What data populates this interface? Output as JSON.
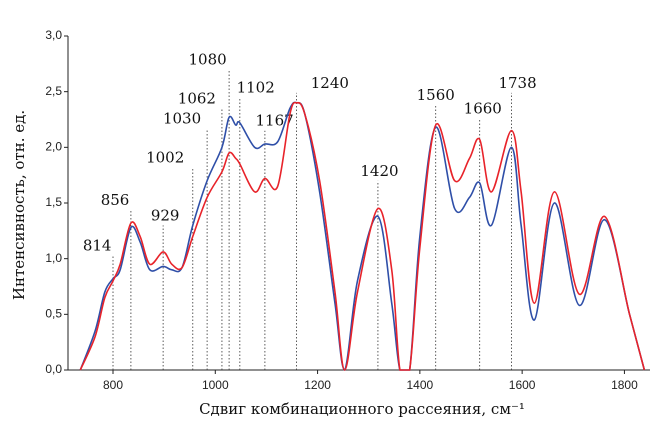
{
  "chart_data": {
    "type": "line",
    "x_label": "Сдвиг комбинационного рассеяния, см⁻¹",
    "y_label": "Интенсивность, отн. ед.",
    "x": [
      736,
      765,
      784,
      800,
      814,
      835,
      853,
      872,
      898,
      915,
      935,
      956,
      984,
      1013,
      1027,
      1040,
      1048,
      1077,
      1097,
      1122,
      1146,
      1159,
      1175,
      1204,
      1234,
      1253,
      1278,
      1318,
      1345,
      1361,
      1380,
      1400,
      1431,
      1468,
      1497,
      1517,
      1540,
      1579,
      1598,
      1624,
      1663,
      1712,
      1761,
      1810,
      1839
    ],
    "series": [
      {
        "color": "#2f4fa8",
        "values": [
          0,
          0.35,
          0.7,
          0.82,
          0.9,
          1.28,
          1.15,
          0.9,
          0.93,
          0.9,
          0.92,
          1.3,
          1.7,
          2.0,
          2.27,
          2.2,
          2.22,
          2.0,
          2.03,
          2.05,
          2.35,
          2.4,
          2.3,
          1.6,
          0.6,
          0,
          0.8,
          1.38,
          0.6,
          0,
          0,
          1.2,
          2.18,
          1.45,
          1.55,
          1.68,
          1.3,
          2.0,
          1.3,
          0.45,
          1.5,
          0.58,
          1.35,
          0.5,
          0
        ]
      },
      {
        "color": "#e8232a",
        "values": [
          0,
          0.3,
          0.65,
          0.8,
          0.95,
          1.32,
          1.2,
          0.95,
          1.06,
          0.95,
          0.92,
          1.2,
          1.55,
          1.78,
          1.95,
          1.9,
          1.85,
          1.6,
          1.72,
          1.65,
          2.3,
          2.4,
          2.3,
          1.7,
          0.7,
          0,
          0.7,
          1.45,
          0.9,
          0,
          0,
          1.1,
          2.2,
          1.7,
          1.9,
          2.07,
          1.6,
          2.15,
          1.6,
          0.6,
          1.6,
          0.68,
          1.38,
          0.5,
          0
        ]
      }
    ],
    "xlim": [
      712,
      1850
    ],
    "xticks": [
      800,
      1000,
      1200,
      1400,
      1600,
      1800
    ],
    "ylim": [
      0,
      3
    ],
    "yticks": [
      {
        "value": 0,
        "label": "0,0"
      },
      {
        "value": 0.5,
        "label": "0,5"
      },
      {
        "value": 1,
        "label": "1,0"
      },
      {
        "value": 1.5,
        "label": "1,5"
      },
      {
        "value": 2,
        "label": "2,0"
      },
      {
        "value": 2.5,
        "label": "2,5"
      },
      {
        "value": 3,
        "label": "3,0"
      }
    ],
    "annotations": [
      {
        "text": "814",
        "x": 800,
        "label_x": 769,
        "y": 1.11
      },
      {
        "text": "856",
        "x": 835,
        "label_x": 804,
        "y": 1.52
      },
      {
        "text": "929",
        "x": 898,
        "label_x": 902,
        "y": 1.38
      },
      {
        "text": "1002",
        "x": 956,
        "label_x": 902,
        "y": 1.9
      },
      {
        "text": "1030",
        "x": 984,
        "label_x": 935,
        "y": 2.25
      },
      {
        "text": "1062",
        "x": 1013,
        "label_x": 964,
        "y": 2.43
      },
      {
        "text": "1080",
        "x": 1027,
        "label_x": 985,
        "y": 2.78
      },
      {
        "text": "1102",
        "x": 1048,
        "label_x": 1079,
        "y": 2.53
      },
      {
        "text": "1167",
        "x": 1097,
        "label_x": 1116,
        "y": 2.23
      },
      {
        "text": "1240",
        "x": 1159,
        "label_x": 1224,
        "y": 2.57
      },
      {
        "text": "1420",
        "x": 1318,
        "label_x": 1321,
        "y": 1.78
      },
      {
        "text": "1560",
        "x": 1431,
        "label_x": 1431,
        "y": 2.46
      },
      {
        "text": "1660",
        "x": 1517,
        "label_x": 1523,
        "y": 2.34
      },
      {
        "text": "1738",
        "x": 1579,
        "label_x": 1591,
        "y": 2.57
      }
    ]
  }
}
